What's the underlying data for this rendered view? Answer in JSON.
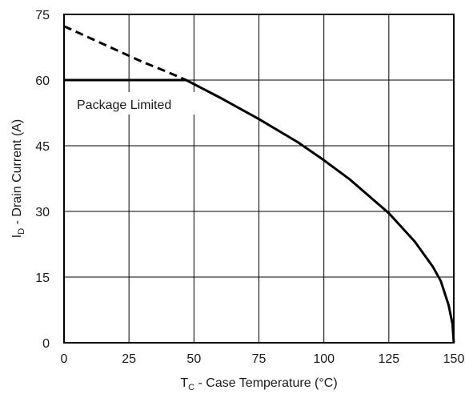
{
  "chart_data": {
    "type": "line",
    "xlabel": {
      "main": "T",
      "sub": "C",
      "rest": " - Case Temperature (°C)"
    },
    "ylabel": {
      "main": "I",
      "sub": "D",
      "rest": " - Drain Current (A)"
    },
    "xlim": [
      0,
      150
    ],
    "ylim": [
      0,
      75
    ],
    "xticks": [
      0,
      25,
      50,
      75,
      100,
      125,
      150
    ],
    "yticks": [
      0,
      15,
      30,
      45,
      60,
      75
    ],
    "xtick_labels": [
      "0",
      "25",
      "50",
      "75",
      "100",
      "125",
      "150"
    ],
    "ytick_labels": [
      "0",
      "15",
      "30",
      "45",
      "60",
      "75"
    ],
    "grid": true,
    "annotation": "Package Limited",
    "series": [
      {
        "style": "solid",
        "x": [
          0,
          10,
          20,
          30,
          40,
          47
        ],
        "y": [
          60,
          60,
          60,
          60,
          60,
          60
        ]
      },
      {
        "style": "dashed",
        "x": [
          0,
          10,
          20,
          30,
          40,
          47
        ],
        "y": [
          72.3,
          69.6,
          66.9,
          64.2,
          61.8,
          60
        ]
      },
      {
        "style": "solid",
        "x": [
          47,
          60,
          75,
          90,
          100,
          110,
          125,
          135,
          142,
          145,
          148,
          149.5,
          150
        ],
        "y": [
          60,
          56,
          51.1,
          45.8,
          41.7,
          37.3,
          29.6,
          23.1,
          17.3,
          14.1,
          8.6,
          4.3,
          0
        ]
      }
    ],
    "colors": {
      "line": "#000000",
      "grid": "#000000",
      "axis": "#000000",
      "text": "#1a1a1a"
    }
  }
}
